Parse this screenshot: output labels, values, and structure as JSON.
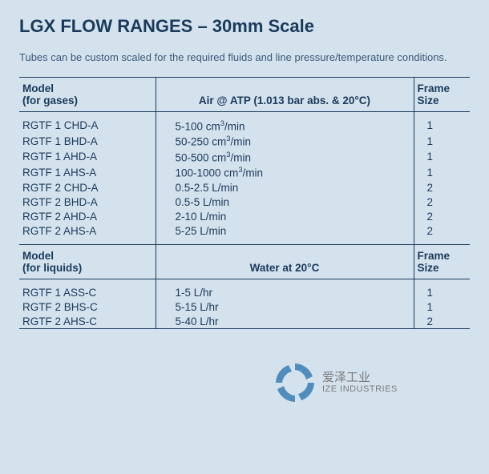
{
  "colors": {
    "background": "#d4e2ed",
    "text_primary": "#1a3a5c",
    "text_secondary": "#3a5a7a",
    "rule": "#1a3a5c",
    "watermark_text": "#6a6a6a",
    "watermark_ring": "#3a7fb5"
  },
  "title": "LGX FLOW RANGES – 30mm Scale",
  "subtitle": "Tubes can be custom scaled for the required fluids and line pressure/temperature conditions.",
  "gas_table": {
    "headers": {
      "model_line1": "Model",
      "model_line2": "(for gases)",
      "condition": "Air @ ATP (1.013 bar abs. & 20°C)",
      "frame_line1": "Frame",
      "frame_line2": "Size"
    },
    "rows": [
      {
        "model": "RGTF 1 CHD-A",
        "range": "5-100 cm³/min",
        "frame": "1"
      },
      {
        "model": "RGTF 1 BHD-A",
        "range": "50-250 cm³/min",
        "frame": "1"
      },
      {
        "model": "RGTF 1 AHD-A",
        "range": "50-500 cm³/min",
        "frame": "1"
      },
      {
        "model": "RGTF 1 AHS-A",
        "range": "100-1000 cm³/min",
        "frame": "1"
      },
      {
        "model": "RGTF 2 CHD-A",
        "range": "0.5-2.5 L/min",
        "frame": "2"
      },
      {
        "model": "RGTF 2 BHD-A",
        "range": "0.5-5 L/min",
        "frame": "2"
      },
      {
        "model": "RGTF 2 AHD-A",
        "range": "2-10 L/min",
        "frame": "2"
      },
      {
        "model": "RGTF 2 AHS-A",
        "range": "5-25 L/min",
        "frame": "2"
      }
    ]
  },
  "liquid_table": {
    "headers": {
      "model_line1": "Model",
      "model_line2": "(for liquids)",
      "condition": "Water at 20°C",
      "frame_line1": "Frame",
      "frame_line2": "Size"
    },
    "rows": [
      {
        "model": "RGTF 1 ASS-C",
        "range": "1-5 L/hr",
        "frame": "1"
      },
      {
        "model": "RGTF 2 BHS-C",
        "range": "5-15 L/hr",
        "frame": "1"
      },
      {
        "model": "RGTF 2 AHS-C",
        "range": "5-40 L/hr",
        "frame": "2"
      }
    ]
  },
  "watermark": {
    "cn": "爱泽工业",
    "en": "IZE INDUSTRIES"
  }
}
